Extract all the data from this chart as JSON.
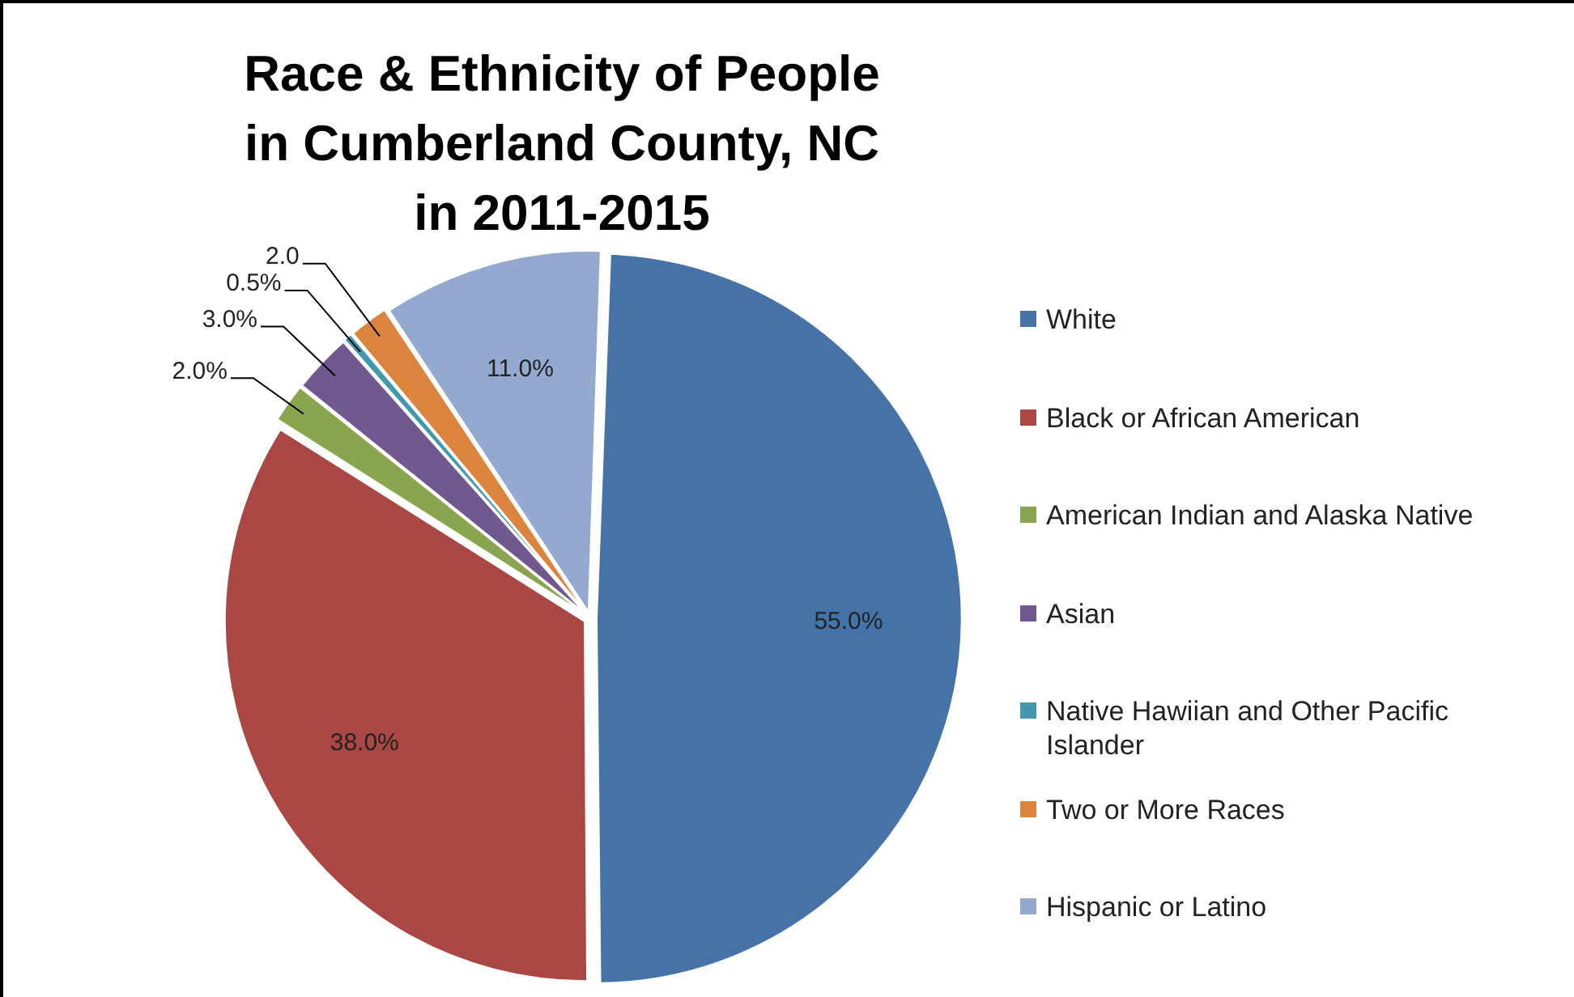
{
  "chart_data": {
    "type": "pie",
    "title": "Race & Ethnicity of People in Cumberland County, NC in 2011-2015",
    "categories": [
      "White",
      "Black or African American",
      "American Indian and Alaska Native",
      "Asian",
      "Native Hawiian and Other Pacific Islander",
      "Two or More Races",
      "Hispanic or Latino"
    ],
    "values": [
      55.0,
      38.0,
      2.0,
      3.0,
      0.5,
      2.0,
      11.0
    ],
    "colors": [
      "#4572a7",
      "#aa4643",
      "#89a54e",
      "#71588f",
      "#4198af",
      "#db843d",
      "#93a9cf"
    ],
    "value_labels": [
      "55.0%",
      "38.0%",
      "2.0%",
      "3.0%",
      "0.5%",
      "2.0",
      "11.0%"
    ],
    "legend": "right"
  }
}
